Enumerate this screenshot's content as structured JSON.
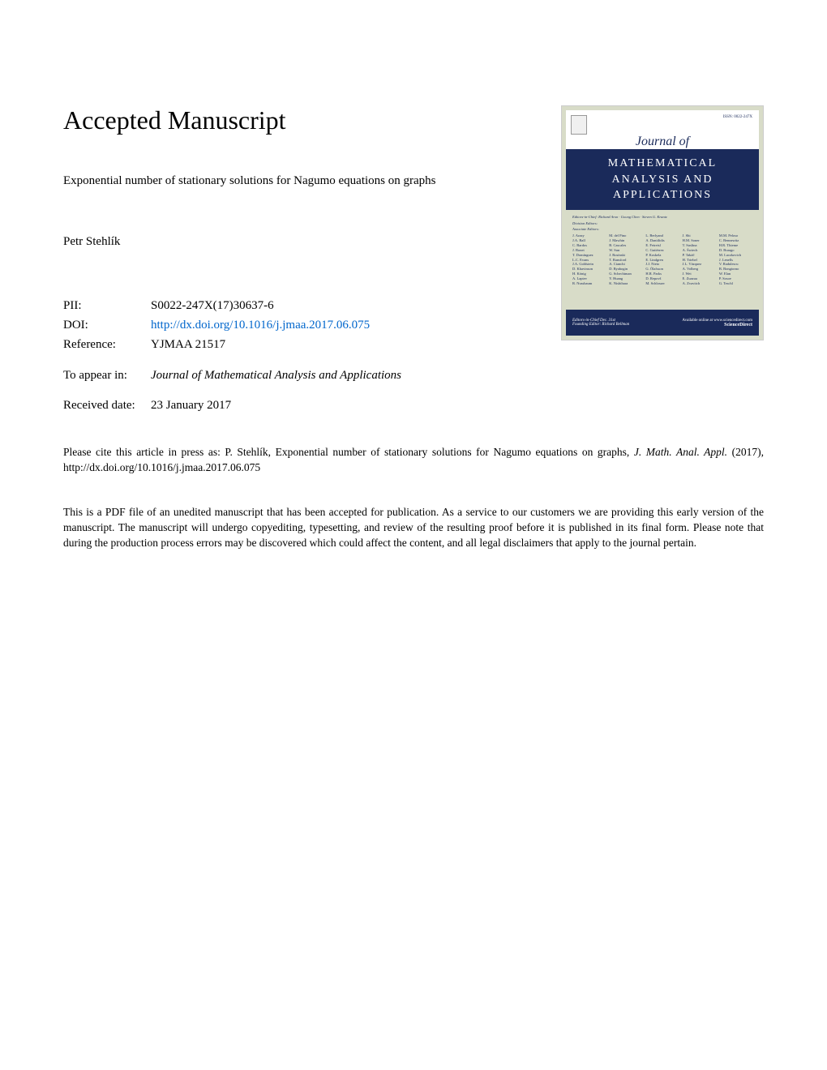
{
  "header": {
    "main_title": "Accepted Manuscript"
  },
  "article": {
    "title": "Exponential number of stationary solutions for Nagumo equations on graphs",
    "author": "Petr Stehlík"
  },
  "metadata": {
    "pii_label": "PII:",
    "pii_value": "S0022-247X(17)30637-6",
    "doi_label": "DOI:",
    "doi_value": "http://dx.doi.org/10.1016/j.jmaa.2017.06.075",
    "reference_label": "Reference:",
    "reference_value": "YJMAA 21517",
    "appear_label": "To appear in:",
    "appear_value": "Journal of Mathematical Analysis and Applications",
    "received_label": "Received date:",
    "received_value": "23 January 2017"
  },
  "cover": {
    "journal_of": "Journal of",
    "title_line1": "MATHEMATICAL",
    "title_line2": "ANALYSIS AND",
    "title_line3": "APPLICATIONS",
    "issn": "ISSN: 0022-247X",
    "editors_in_chief": "Editors-in-Chief: Richard Aron · Goong Chen · Steven G. Krantz",
    "division_editors": "Division Editors:",
    "associate_editors": "Associate Editors:",
    "footer_left1": "Editors-in-Chief Dec. 31st",
    "footer_left2": "Founding Editor: Richard Bellman",
    "footer_right1": "Available online at www.sciencedirect.com",
    "sciencedirect": "ScienceDirect",
    "colors": {
      "cover_bg": "#d8dcc8",
      "title_bg": "#1a2a5a",
      "title_text": "#ffffff",
      "link_color": "#0066cc"
    }
  },
  "citation": {
    "prefix": "Please cite this article in press as: P. Stehlík, Exponential number of stationary solutions for Nagumo equations on graphs, ",
    "journal_abbrev": "J. Math. Anal. Appl.",
    "suffix": " (2017), http://dx.doi.org/10.1016/j.jmaa.2017.06.075"
  },
  "disclaimer": {
    "text": "This is a PDF file of an unedited manuscript that has been accepted for publication. As a service to our customers we are providing this early version of the manuscript. The manuscript will undergo copyediting, typesetting, and review of the resulting proof before it is published in its final form. Please note that during the production process errors may be discovered which could affect the content, and all legal disclaimers that apply to the journal pertain."
  }
}
